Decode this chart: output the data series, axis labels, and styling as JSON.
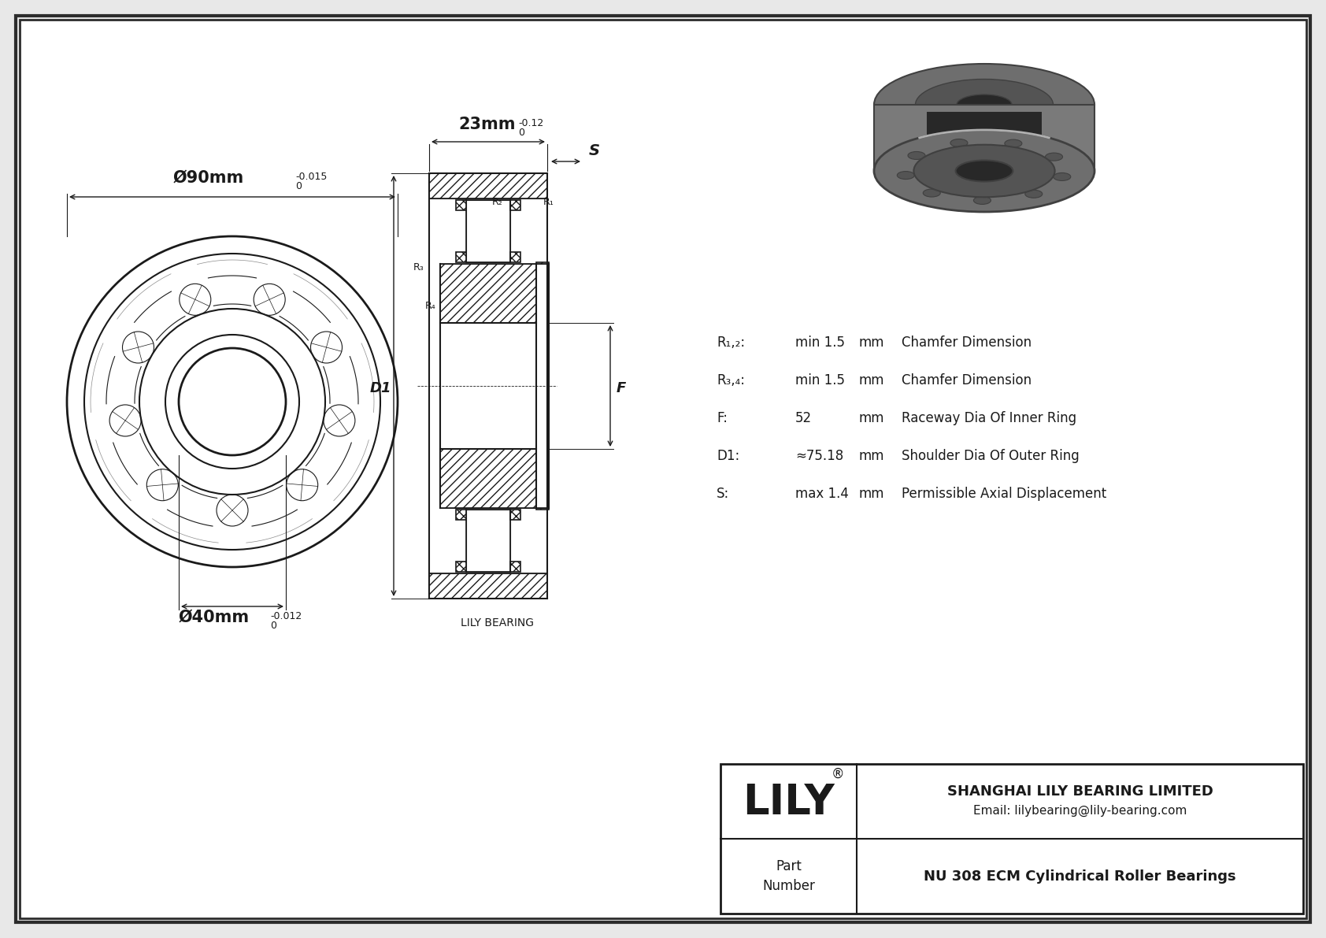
{
  "bg_color": "#e8e8e8",
  "drawing_bg": "#ffffff",
  "border_color": "#2c2c2c",
  "line_color": "#1a1a1a",
  "title_company": "SHANGHAI LILY BEARING LIMITED",
  "title_email": "Email: lilybearing@lily-bearing.com",
  "title_logo": "LILY",
  "part_label": "Part\nNumber",
  "part_number": "NU 308 ECM Cylindrical Roller Bearings",
  "lily_bearing_label": "LILY BEARING",
  "dim_outer_main": "Ø90mm",
  "dim_outer_tol_top": "0",
  "dim_outer_tol_bot": "-0.015",
  "dim_inner_main": "Ø40mm",
  "dim_inner_tol_top": "0",
  "dim_inner_tol_bot": "-0.012",
  "dim_width_main": "23mm",
  "dim_width_tol_top": "0",
  "dim_width_tol_bot": "-0.12",
  "label_S": "S",
  "label_D1": "D1",
  "label_F": "F",
  "label_R1": "R₁",
  "label_R2": "R₂",
  "label_R3": "R₃",
  "label_R4": "R₄",
  "specs": [
    [
      "R₁,₂:",
      "min 1.5",
      "mm",
      "Chamfer Dimension"
    ],
    [
      "R₃,₄:",
      "min 1.5",
      "mm",
      "Chamfer Dimension"
    ],
    [
      "F:",
      "52",
      "mm",
      "Raceway Dia Of Inner Ring"
    ],
    [
      "D1:",
      "≈75.18",
      "mm",
      "Shoulder Dia Of Outer Ring"
    ],
    [
      "S:",
      "max 1.4",
      "mm",
      "Permissible Axial Displacement"
    ]
  ]
}
